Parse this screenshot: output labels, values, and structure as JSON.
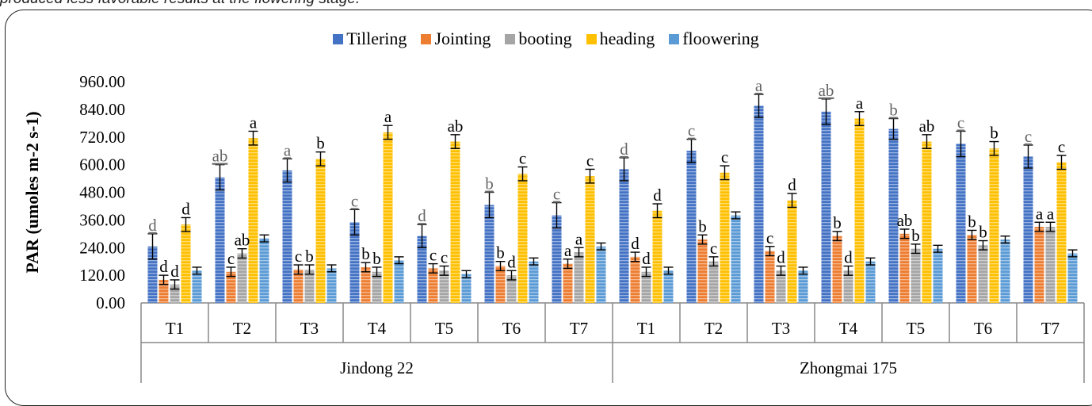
{
  "caption": "produced less favorable results at the flowering stage.",
  "colors": {
    "Tillering": "#4472C4",
    "Jointing": "#ED7D31",
    "booting": "#A5A5A5",
    "heading": "#FFC000",
    "floowering": "#5B9BD5"
  },
  "chart_data": {
    "type": "bar",
    "ylabel": "PAR (umoles m-2 s-1)",
    "ylim": [
      0,
      960
    ],
    "yticks": [
      "0.00",
      "120.00",
      "240.00",
      "360.00",
      "480.00",
      "600.00",
      "720.00",
      "840.00",
      "960.00"
    ],
    "grid": false,
    "legend_position": "top",
    "groups": [
      "Jindong 22",
      "Zhongmai 175"
    ],
    "categories": [
      "T1",
      "T2",
      "T3",
      "T4",
      "T5",
      "T6",
      "T7",
      "T1",
      "T2",
      "T3",
      "T4",
      "T5",
      "T6",
      "T7"
    ],
    "series": [
      {
        "name": "Tillering",
        "values": [
          245,
          545,
          575,
          350,
          290,
          425,
          380,
          580,
          660,
          855,
          830,
          755,
          690,
          635
        ],
        "errors": [
          55,
          55,
          50,
          55,
          50,
          55,
          55,
          50,
          50,
          50,
          55,
          45,
          55,
          50
        ],
        "labels": [
          "d",
          "ab",
          "a",
          "c",
          "d",
          "b",
          "c",
          "d",
          "c",
          "a",
          "ab",
          "b",
          "c",
          "c"
        ]
      },
      {
        "name": "Jointing",
        "values": [
          100,
          135,
          145,
          155,
          150,
          160,
          170,
          200,
          275,
          225,
          290,
          300,
          295,
          330
        ],
        "errors": [
          20,
          20,
          20,
          20,
          20,
          20,
          20,
          20,
          20,
          20,
          20,
          20,
          20,
          20
        ],
        "labels": [
          "d",
          "c",
          "c",
          "b",
          "c",
          "b",
          "a",
          "d",
          "b",
          "c",
          "b",
          "ab",
          "b",
          "a"
        ]
      },
      {
        "name": "booting",
        "values": [
          80,
          215,
          145,
          135,
          140,
          120,
          220,
          135,
          180,
          140,
          140,
          235,
          250,
          330
        ],
        "errors": [
          20,
          20,
          20,
          20,
          20,
          20,
          20,
          20,
          20,
          20,
          20,
          20,
          20,
          20
        ],
        "labels": [
          "d",
          "ab",
          "b",
          "b",
          "c",
          "d",
          "a",
          "d",
          "c",
          "d",
          "d",
          "b",
          "b",
          "a"
        ]
      },
      {
        "name": "heading",
        "values": [
          340,
          715,
          625,
          740,
          700,
          560,
          550,
          400,
          565,
          445,
          800,
          700,
          670,
          610
        ],
        "errors": [
          30,
          30,
          30,
          30,
          30,
          30,
          30,
          30,
          30,
          30,
          30,
          30,
          30,
          30
        ],
        "labels": [
          "d",
          "a",
          "b",
          "a",
          "ab",
          "c",
          "c",
          "d",
          "c",
          "d",
          "a",
          "ab",
          "b",
          "c"
        ]
      },
      {
        "name": "floowering",
        "values": [
          140,
          280,
          150,
          185,
          125,
          180,
          245,
          140,
          380,
          140,
          180,
          235,
          275,
          215
        ],
        "errors": [
          15,
          15,
          15,
          15,
          15,
          15,
          15,
          15,
          15,
          15,
          15,
          15,
          15,
          15
        ],
        "labels": []
      }
    ]
  }
}
